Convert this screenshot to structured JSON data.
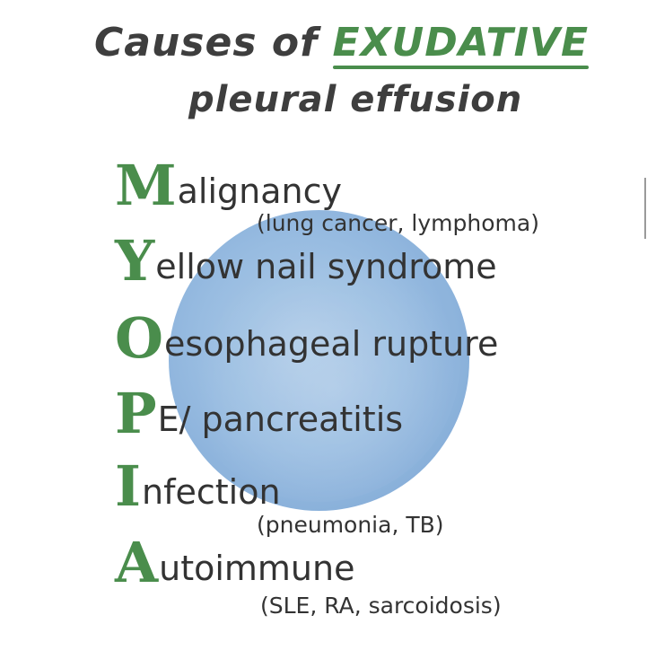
{
  "title": {
    "prefix": "Causes of",
    "emphasis": "EXUDATIVE",
    "line2": "pleural effusion"
  },
  "colors": {
    "accent_green": "#4a8d4c",
    "text_dark": "#333333",
    "circle_blue": "#8fb6df"
  },
  "items": [
    {
      "letter": "M",
      "rest": "alignancy",
      "note": "(lung cancer, lymphoma)"
    },
    {
      "letter": "Y",
      "rest": "ellow nail syndrome"
    },
    {
      "letter": "O",
      "rest": "esophageal rupture"
    },
    {
      "letter": "P",
      "rest": "E/ pancreatitis"
    },
    {
      "letter": "I",
      "rest": "nfection",
      "note": "(pneumonia, TB)"
    },
    {
      "letter": "A",
      "rest": "utoimmune",
      "note": "(SLE, RA, sarcoidosis)"
    }
  ]
}
